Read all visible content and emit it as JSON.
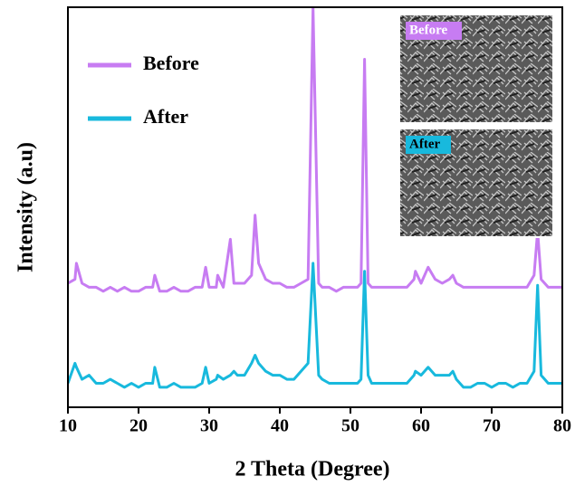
{
  "chart_data": {
    "type": "line",
    "xlabel": "2 Theta (Degree)",
    "ylabel": "Intensity (a.u)",
    "x": [
      10,
      11,
      11.2,
      12,
      13,
      14,
      15,
      16,
      17,
      18,
      19,
      20,
      21,
      22,
      22.3,
      23,
      24,
      25,
      26,
      27,
      28,
      29,
      29.5,
      30,
      31,
      31.2,
      32,
      33,
      33.5,
      34,
      35,
      36,
      36.5,
      37,
      38,
      39,
      40,
      41,
      42,
      43,
      44,
      44.7,
      45.5,
      46,
      47,
      48,
      49,
      50,
      51,
      51.5,
      52,
      52.5,
      53,
      54,
      55,
      56,
      57,
      58,
      59,
      59.2,
      60,
      61,
      62,
      63,
      64,
      64.5,
      65,
      66,
      67,
      68,
      69,
      70,
      71,
      72,
      73,
      74,
      75,
      76,
      76.5,
      77,
      78,
      79,
      80
    ],
    "series": [
      {
        "name": "Before",
        "color": "#c77cf2",
        "values": [
          31,
          32,
          36,
          31,
          30,
          30,
          29,
          30,
          29,
          30,
          29,
          29,
          30,
          30,
          33,
          29,
          29,
          30,
          29,
          29,
          30,
          30,
          35,
          30,
          30,
          33,
          30,
          42,
          31,
          31,
          31,
          33,
          48,
          36,
          32,
          31,
          31,
          30,
          30,
          31,
          32,
          100,
          31,
          30,
          30,
          29,
          30,
          30,
          30,
          31,
          87,
          31,
          30,
          30,
          30,
          30,
          30,
          30,
          32,
          34,
          31,
          35,
          32,
          31,
          32,
          33,
          31,
          30,
          30,
          30,
          30,
          30,
          30,
          30,
          30,
          30,
          30,
          33,
          44,
          32,
          30,
          30,
          30
        ]
      },
      {
        "name": "After",
        "color": "#18b9dd",
        "values": [
          6,
          11,
          10,
          7,
          8,
          6,
          6,
          7,
          6,
          5,
          6,
          5,
          6,
          6,
          10,
          5,
          5,
          6,
          5,
          5,
          5,
          6,
          10,
          6,
          7,
          8,
          7,
          8,
          9,
          8,
          8,
          11,
          13,
          11,
          9,
          8,
          8,
          7,
          7,
          9,
          11,
          36,
          8,
          7,
          6,
          6,
          6,
          6,
          6,
          7,
          34,
          8,
          6,
          6,
          6,
          6,
          6,
          6,
          8,
          9,
          8,
          10,
          8,
          8,
          8,
          9,
          7,
          5,
          5,
          6,
          6,
          5,
          6,
          6,
          5,
          6,
          6,
          9,
          30.5,
          8,
          6,
          6,
          6
        ]
      }
    ],
    "xlim": [
      10,
      80
    ],
    "xticks": [
      10,
      20,
      30,
      40,
      50,
      60,
      70,
      80
    ],
    "ylim": [
      0,
      100
    ],
    "legend": "upper left",
    "inset_labels": [
      "Before",
      "After"
    ]
  }
}
